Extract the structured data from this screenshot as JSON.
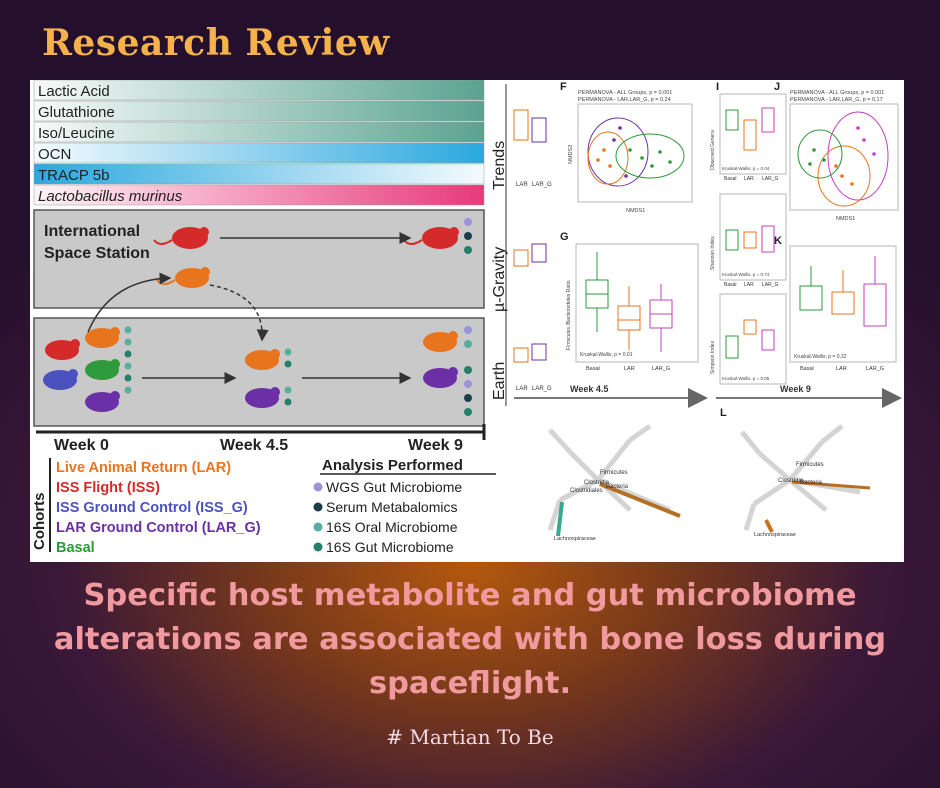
{
  "header": {
    "title": "Research Review"
  },
  "caption": {
    "text": "Specific host metabolite and gut microbiome alterations are associated with bone loss during spaceflight.",
    "hashtag": "# Martian To Be"
  },
  "figure": {
    "trend_bars": [
      {
        "label": "Lactic Acid",
        "color": "#5ba390"
      },
      {
        "label": "Glutathione",
        "color": "#5ba390"
      },
      {
        "label": "Iso/Leucine",
        "color": "#5ba390"
      },
      {
        "label": "OCN",
        "color": "#2ba8df"
      },
      {
        "label": "TRACP 5b",
        "color": "#2ba8df"
      },
      {
        "label": "Lactobacillus murinus",
        "color": "#e8397a"
      }
    ],
    "section_labels": {
      "trends": "Trends",
      "micro_gravity": "µ-Gravity",
      "earth": "Earth"
    },
    "iss_label": {
      "line1": "International",
      "line2": "Space Station"
    },
    "timeline": [
      "Week 0",
      "Week 4.5",
      "Week 9"
    ],
    "cohorts": {
      "title": "Cohorts",
      "items": [
        {
          "label": "Live Animal Return (LAR)",
          "color": "#e8741e"
        },
        {
          "label": "ISS Flight (ISS)",
          "color": "#d42a2a"
        },
        {
          "label": "ISS Ground Control (ISS_G)",
          "color": "#4b52c0"
        },
        {
          "label": "LAR Ground Control (LAR_G)",
          "color": "#6b2fa6"
        },
        {
          "label": "Basal",
          "color": "#2e9a3c"
        }
      ]
    },
    "analysis": {
      "title": "Analysis Performed",
      "items": [
        {
          "label": "WGS Gut Microbiome",
          "color": "#9b93d8"
        },
        {
          "label": "Serum Metabalomics",
          "color": "#1c3e4a"
        },
        {
          "label": "16S Oral Microbiome",
          "color": "#5aaca0"
        },
        {
          "label": "16S Gut Microbiome",
          "color": "#23806a"
        }
      ]
    },
    "panels": {
      "F": "F",
      "G": "G",
      "I": "I",
      "J": "J",
      "K": "K",
      "L": "L",
      "f_stats_1": "PERMANOVA - ALL Groups, p = 0.001",
      "f_stats_2": "PERMANOVA - LAR,LAR_G, p = 0.24",
      "j_stats_1": "PERMANOVA - ALL Groups, p = 0.001",
      "j_stats_2": "PERMANOVA - LAR,LAR_G, p = 0.17",
      "nmds1": "NMDS1",
      "nmds2": "NMDS2",
      "g_ylabel": "Firmicutes /Bacteroidetes Ratio",
      "g_test": "Kruskal-Wallis, p = 0.01",
      "k_test": "Kruskal-Wallis, p = 0.32",
      "obs_genera": "Observed Genera",
      "shannon": "Shannon Index",
      "simpson": "Simpson Index",
      "kw_1": "Kruskal-Wallis, p = 0.04",
      "kw_2": "Kruskal-Wallis, p = 0.74",
      "kw_3": "Kruskal-Wallis, p = 0.05",
      "week_45": "Week 4.5",
      "week_9": "Week 9",
      "groups": [
        "Basal",
        "LAR",
        "LAR_G"
      ],
      "groups_short": [
        "LAR",
        "LAR_G"
      ],
      "tree_labels": [
        "Firmicutes",
        "Clostridia",
        "Clostridiales",
        "Bacteria",
        "Lachnospiraceae"
      ]
    }
  }
}
